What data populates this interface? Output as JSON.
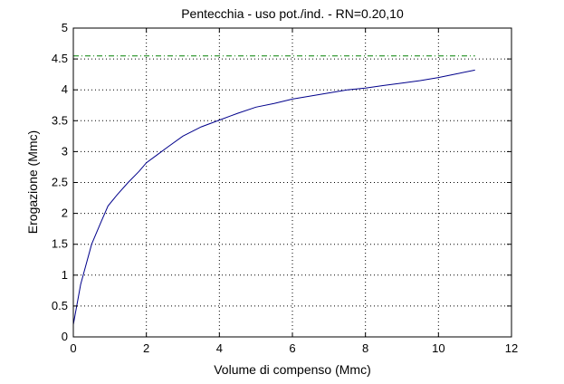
{
  "chart_data": {
    "type": "line",
    "title": "Pentecchia  -  uso pot./ind.  -   RN=0.20,10",
    "xlabel": "Volume di compenso (Mmc)",
    "ylabel": "Erogazione (Mmc)",
    "xlim": [
      0,
      12
    ],
    "ylim": [
      0,
      5
    ],
    "x_ticks": [
      "0",
      "2",
      "4",
      "6",
      "8",
      "10",
      "12"
    ],
    "y_ticks": [
      "0",
      "0.5",
      "1",
      "1.5",
      "2",
      "2.5",
      "3",
      "3.5",
      "4",
      "4.5",
      "5"
    ],
    "grid": true,
    "grid_style": "dotted",
    "series": [
      {
        "color": "#00008b",
        "style": "solid",
        "x": [
          0,
          0.2,
          0.5,
          0.75,
          0.95,
          1.2,
          1.5,
          1.8,
          2.0,
          2.3,
          2.6,
          3.0,
          3.5,
          4.0,
          4.5,
          5.0,
          5.5,
          6.0,
          6.5,
          7.0,
          7.5,
          8.0,
          8.5,
          9.0,
          9.5,
          10.0,
          10.5,
          11.0
        ],
        "y": [
          0.2,
          0.85,
          1.5,
          1.85,
          2.12,
          2.3,
          2.5,
          2.68,
          2.82,
          2.95,
          3.08,
          3.25,
          3.4,
          3.51,
          3.62,
          3.72,
          3.78,
          3.85,
          3.9,
          3.95,
          4.0,
          4.03,
          4.07,
          4.11,
          4.15,
          4.2,
          4.26,
          4.32
        ]
      },
      {
        "color": "#008000",
        "style": "dash-dot",
        "x": [
          0,
          11.0
        ],
        "y": [
          4.55,
          4.55
        ]
      }
    ]
  }
}
